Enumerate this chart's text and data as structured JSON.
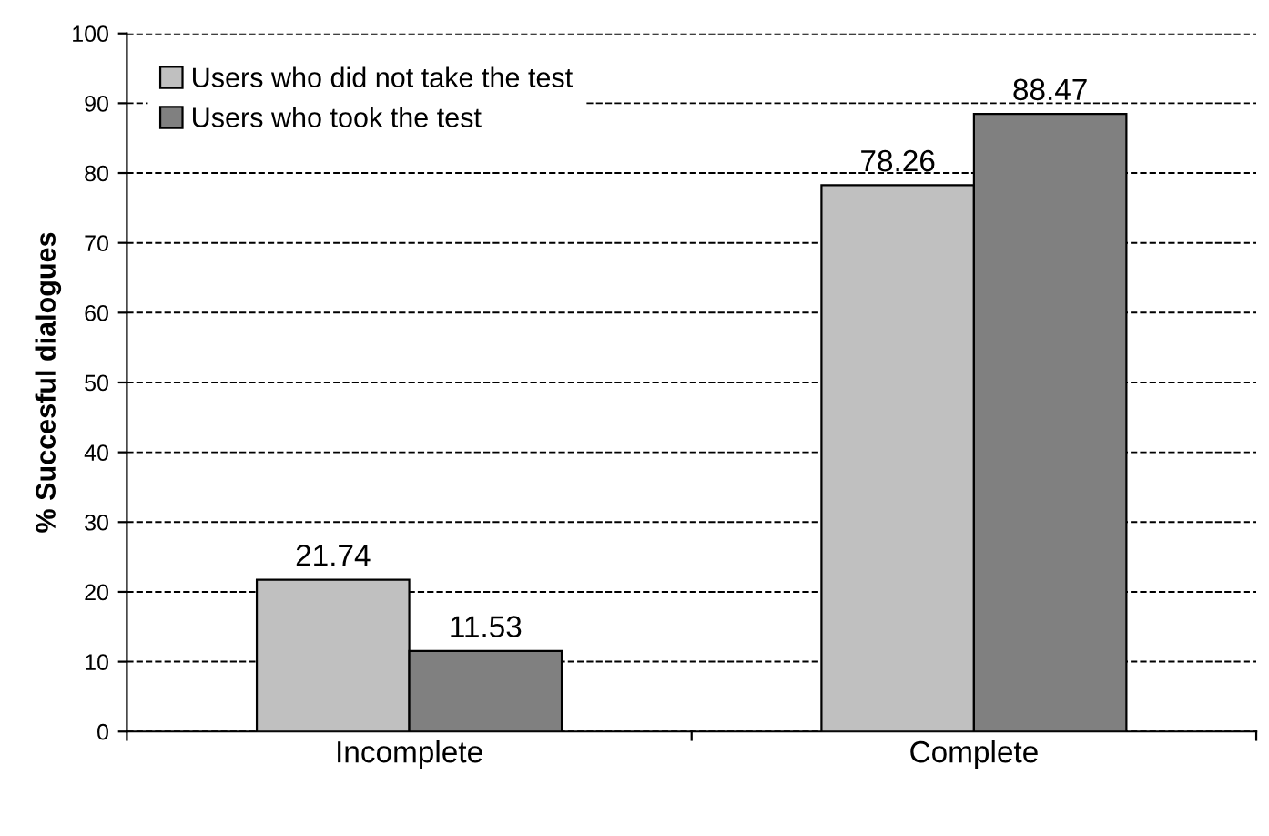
{
  "chart_data": {
    "type": "bar",
    "ylabel": "% Succesful dialogues",
    "categories": [
      "Incomplete",
      "Complete"
    ],
    "series": [
      {
        "name": "Users who did not take the test",
        "color": "#c0c0c0",
        "values": [
          21.74,
          78.26
        ]
      },
      {
        "name": "Users who took the test",
        "color": "#808080",
        "values": [
          11.53,
          88.47
        ]
      }
    ],
    "ylim": [
      0,
      100
    ],
    "yticks": [
      0,
      10,
      20,
      30,
      40,
      50,
      60,
      70,
      80,
      90,
      100
    ],
    "grid": "y",
    "legend": "top left",
    "data_labels": true
  }
}
